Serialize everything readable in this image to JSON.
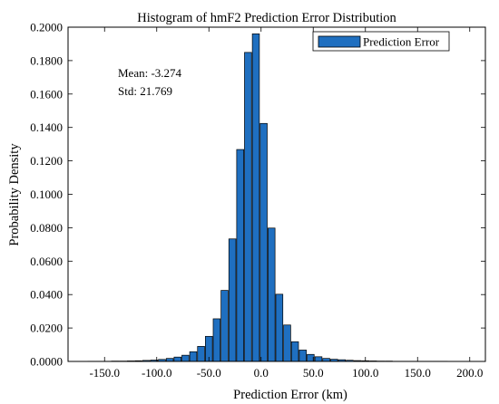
{
  "chart_data": {
    "type": "bar",
    "title": "Histogram of hmF2 Prediction Error Distribution",
    "xlabel": "Prediction Error (km)",
    "ylabel": "Probability Density",
    "xlim": [
      -185,
      215
    ],
    "ylim": [
      0,
      0.2
    ],
    "xticks": [
      "-150.0",
      "-100.0",
      "-50.0",
      "0.0",
      "50.0",
      "100.0",
      "150.0",
      "200.0"
    ],
    "yticks": [
      "0.0000",
      "0.0200",
      "0.0400",
      "0.0600",
      "0.0800",
      "0.1000",
      "0.1200",
      "0.1400",
      "0.1600",
      "0.1800",
      "0.2000"
    ],
    "bin_width": 7.5,
    "grid": false,
    "legend_position": "top-right",
    "series": [
      {
        "name": "Prediction Error",
        "color": "#1f6fc0",
        "x": [
          -162.5,
          -155,
          -147.5,
          -140,
          -132.5,
          -125,
          -117.5,
          -110,
          -102.5,
          -95,
          -87.5,
          -80,
          -72.5,
          -65,
          -57.5,
          -50,
          -42.5,
          -35,
          -27.5,
          -20,
          -12.5,
          -5,
          2.5,
          10,
          17.5,
          25,
          32.5,
          40,
          47.5,
          55,
          62.5,
          70,
          77.5,
          85,
          92.5,
          100,
          107.5,
          115,
          122.5,
          130,
          137.5,
          145,
          152.5,
          160,
          167.5,
          175
        ],
        "values": [
          0.0001,
          0.0001,
          0.0001,
          0.0002,
          0.0002,
          0.0003,
          0.0004,
          0.0006,
          0.0008,
          0.0012,
          0.0018,
          0.0026,
          0.0037,
          0.0058,
          0.009,
          0.015,
          0.0255,
          0.0425,
          0.0733,
          0.1268,
          0.1849,
          0.196,
          0.1424,
          0.0798,
          0.0402,
          0.0218,
          0.0118,
          0.0068,
          0.0042,
          0.0028,
          0.0018,
          0.0013,
          0.001,
          0.0007,
          0.0005,
          0.0004,
          0.0003,
          0.0002,
          0.0002,
          0.0001,
          0.0001,
          0.0001,
          0.0001,
          0.0001,
          0.0001,
          0.0001
        ]
      }
    ],
    "annotations": [
      "Mean: -3.274",
      "Std: 21.769"
    ]
  }
}
